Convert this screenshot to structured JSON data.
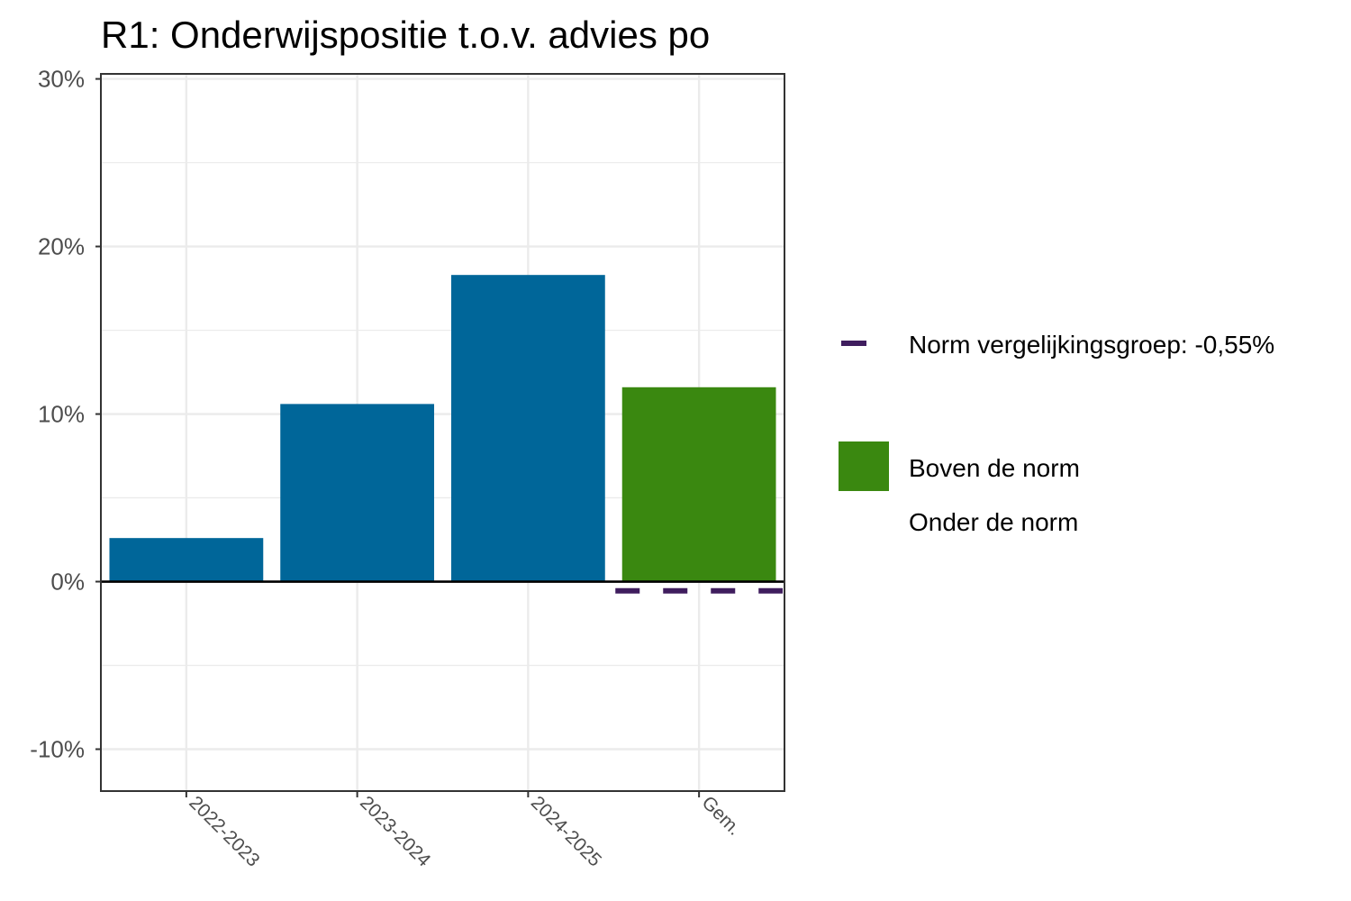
{
  "chart_data": {
    "type": "bar",
    "title": "R1: Onderwijspositie t.o.v. advies po",
    "xlabel": "",
    "ylabel": "",
    "categories": [
      "2022-2023",
      "2023-2024",
      "2024-2025",
      "Gem."
    ],
    "values": [
      2.6,
      10.6,
      18.3,
      11.6
    ],
    "bar_status": [
      "none",
      "none",
      "none",
      "boven"
    ],
    "ylim": [
      -12.5,
      30.3
    ],
    "yticks": [
      -10,
      0,
      10,
      20,
      30
    ],
    "ytick_labels": [
      "-10%",
      "0%",
      "10%",
      "20%",
      "30%"
    ],
    "norm": {
      "value": -0.55,
      "label": "Norm vergelijkingsgroep: -0,55%",
      "applies_to": "Gem."
    },
    "grid": true,
    "legend_position": "right",
    "legend": {
      "norm_label": "Norm vergelijkingsgroep: -0,55%",
      "above_label": "Boven de norm",
      "below_label": "Onder de norm"
    }
  },
  "colors": {
    "bar_default": "#006699",
    "bar_above": "#3a8810",
    "norm": "#3f1d5e",
    "grid": "#ebebeb",
    "panel_border": "#333333",
    "zero_line": "#000000"
  }
}
